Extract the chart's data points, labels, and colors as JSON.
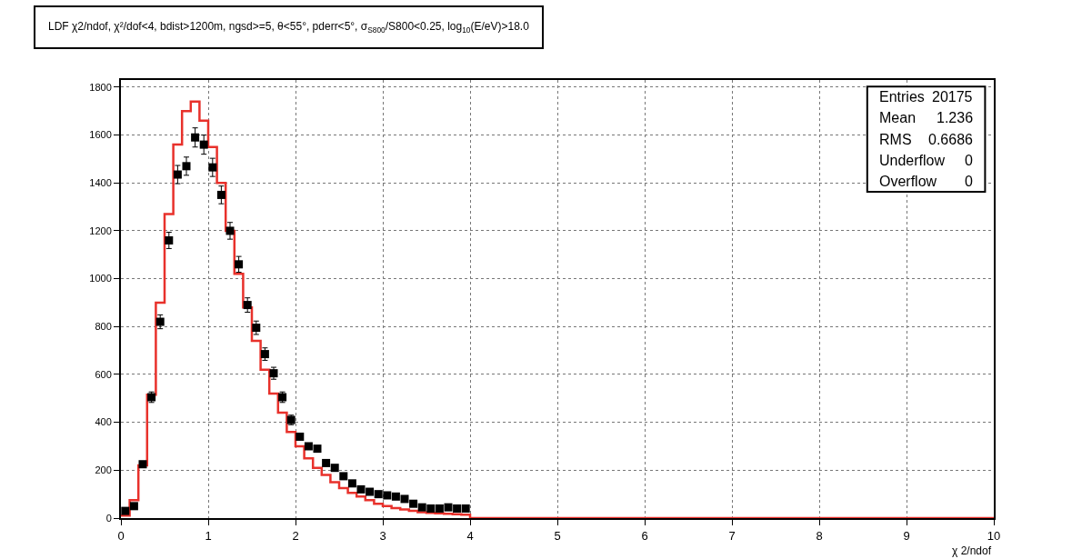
{
  "chart_data": {
    "type": "histogram",
    "title": "LDF χ2/ndof, χ²/dof<4, bdist>1200m, ngsd>=5, θ<55°, pderr<5°, σ$_{S800}$/S800<0.25, log$_{10}$(E/eV)>18.0",
    "xlabel": "χ 2/ndof",
    "annotations": [
      "Entries",
      "20175",
      "Mean",
      "1.236",
      "RMS",
      "0.6686",
      "Underflow",
      "0",
      "Overflow",
      "0"
    ],
    "series": [
      {
        "type": "histogram",
        "color": "#e8312b",
        "bins": [
          0,
          0.1,
          0.2,
          0.3,
          0.4,
          0.5,
          0.6,
          0.7,
          0.8,
          0.9,
          1,
          1.1,
          1.2,
          1.3,
          1.4,
          1.5,
          1.6,
          1.7,
          1.8,
          1.9,
          2,
          2.1,
          2.2,
          2.3,
          2.4,
          2.5,
          2.6,
          2.7,
          2.8,
          2.9,
          3,
          3.1,
          3.2,
          3.3,
          3.4,
          3.5,
          3.6,
          3.7,
          3.8,
          3.9,
          4,
          4.1,
          4.2,
          4.3,
          4.4,
          4.5,
          4.6,
          4.7,
          4.8,
          4.9,
          5,
          5.1,
          5.2,
          5.3,
          5.4,
          5.5,
          5.6,
          5.7,
          5.8,
          5.9,
          6,
          6.1,
          6.2,
          6.3,
          6.4,
          6.5,
          6.6,
          6.7,
          6.8,
          6.9,
          7,
          7.1,
          7.2,
          7.3,
          7.4,
          7.5,
          7.6,
          7.7,
          7.8,
          7.9,
          8,
          8.1,
          8.2,
          8.3,
          8.4,
          8.5,
          8.6,
          8.7,
          8.8,
          8.9,
          9,
          9.1,
          9.2,
          9.3,
          9.4,
          9.5,
          9.6,
          9.7,
          9.8,
          9.9,
          10
        ],
        "values": [
          10,
          75,
          220,
          515,
          900,
          1270,
          1560,
          1700,
          1740,
          1660,
          1550,
          1400,
          1200,
          1020,
          880,
          740,
          620,
          520,
          440,
          360,
          300,
          250,
          210,
          180,
          150,
          125,
          105,
          90,
          75,
          60,
          50,
          42,
          36,
          30,
          25,
          22,
          20,
          18,
          16,
          14,
          0,
          0,
          0,
          0,
          0,
          0,
          0,
          0,
          0,
          0,
          0,
          0,
          0,
          0,
          0,
          0,
          0,
          0,
          0,
          0,
          0,
          0,
          0,
          0,
          0,
          0,
          0,
          0,
          0,
          0,
          0,
          0,
          0,
          0,
          0,
          0,
          0,
          0,
          0,
          0,
          0,
          0,
          0,
          0,
          0,
          0,
          0,
          0,
          0,
          0,
          0,
          0,
          0,
          0,
          0,
          0,
          0,
          0,
          0,
          0
        ]
      },
      {
        "type": "scatter",
        "color": "#000000",
        "marker": "square",
        "x": [
          0.05,
          0.15,
          0.25,
          0.35,
          0.45,
          0.55,
          0.65,
          0.75,
          0.85,
          0.95,
          1.05,
          1.15,
          1.25,
          1.35,
          1.45,
          1.55,
          1.65,
          1.75,
          1.85,
          1.95,
          2.05,
          2.15,
          2.25,
          2.35,
          2.45,
          2.55,
          2.65,
          2.75,
          2.85,
          2.95,
          3.05,
          3.15,
          3.25,
          3.35,
          3.45,
          3.55,
          3.65,
          3.75,
          3.85,
          3.95
        ],
        "values": [
          30,
          50,
          225,
          505,
          820,
          1160,
          1435,
          1470,
          1590,
          1560,
          1465,
          1350,
          1200,
          1060,
          890,
          795,
          685,
          605,
          505,
          410,
          340,
          300,
          290,
          230,
          210,
          175,
          145,
          120,
          110,
          100,
          95,
          90,
          80,
          60,
          45,
          40,
          40,
          45,
          40,
          40
        ],
        "errors": [
          null,
          null,
          null,
          22,
          29,
          34,
          38,
          38,
          40,
          40,
          38,
          37,
          35,
          33,
          30,
          28,
          26,
          25,
          22,
          20,
          null,
          null,
          null,
          null,
          null,
          null,
          null,
          null,
          null,
          null,
          null,
          null,
          null,
          null,
          null,
          null,
          null,
          null,
          null,
          null
        ]
      }
    ],
    "xlim": [
      0,
      10
    ],
    "xticks": [
      0,
      1,
      2,
      3,
      4,
      5,
      6,
      7,
      8,
      9,
      10
    ],
    "ylim": [
      0,
      1830
    ],
    "yticks": [
      0,
      200,
      400,
      600,
      800,
      1000,
      1200,
      1400,
      1600,
      1800
    ],
    "grid": true
  }
}
